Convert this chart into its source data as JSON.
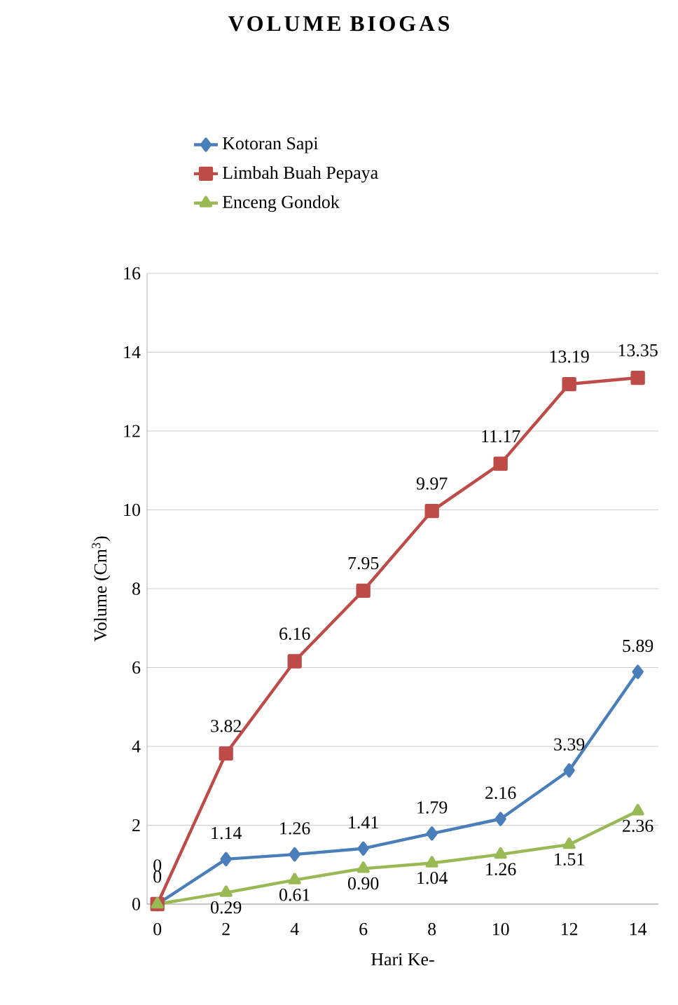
{
  "chart_data": {
    "type": "line",
    "title": "VOLUME BIOGAS",
    "xlabel": "Hari Ke-",
    "ylabel": "Volume (Cm$^{3}$)",
    "categories": [
      "0",
      "2",
      "4",
      "6",
      "8",
      "10",
      "12",
      "14"
    ],
    "series": [
      {
        "name": "Kotoran Sapi",
        "color": "#4a7ebb",
        "marker": "diamond",
        "values": [
          0,
          1.14,
          1.26,
          1.41,
          1.79,
          2.16,
          3.39,
          5.89
        ],
        "value_labels": [
          "0",
          "1.14",
          "1.26",
          "1.41",
          "1.79",
          "2.16",
          "3.39",
          "5.89"
        ]
      },
      {
        "name": "Limbah Buah Pepaya",
        "color": "#be4b48",
        "marker": "square",
        "values": [
          0,
          3.82,
          6.16,
          7.95,
          9.97,
          11.17,
          13.19,
          13.35
        ],
        "value_labels": [
          "0",
          "3.82",
          "6.16",
          "7.95",
          "9.97",
          "11.17",
          "13.19",
          "13.35"
        ]
      },
      {
        "name": "Enceng Gondok",
        "color": "#98b954",
        "marker": "triangle",
        "values": [
          0,
          0.29,
          0.61,
          0.9,
          1.04,
          1.26,
          1.51,
          2.36
        ],
        "value_labels": [
          null,
          "0.29",
          "0.61",
          "0.90",
          "1.04",
          "1.26",
          "1.51",
          "2.36"
        ]
      }
    ],
    "ylim": [
      0,
      16
    ],
    "yticks": [
      0,
      2,
      4,
      6,
      8,
      10,
      12,
      14,
      16
    ],
    "grid": "y",
    "legend": "top",
    "line_style": "solid"
  }
}
